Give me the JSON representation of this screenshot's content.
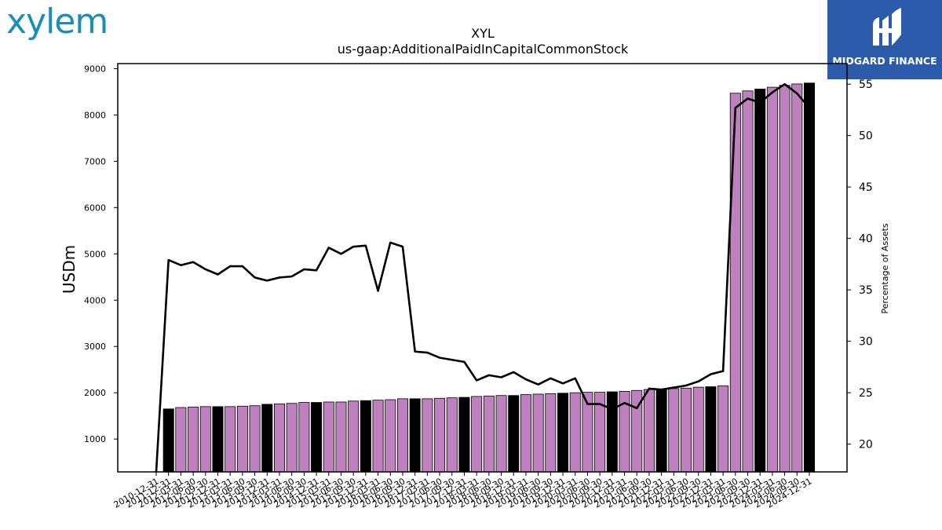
{
  "logos": {
    "left": "xylem",
    "right": "MIDGARD FINANCE"
  },
  "colors": {
    "bar_pink": "#bf80bf",
    "bar_black": "#000000",
    "line": "#000000",
    "logo_left": "#1a8fb5",
    "logo_right_bg": "#2c5ba9"
  },
  "chart_data": {
    "type": "bar",
    "title": "XYL",
    "subtitle": "us-gaap:AdditionalPaidInCapitalCommonStock",
    "ylabel": "USDm",
    "y2label": "Percentage of Assets",
    "ylim": [
      290,
      9110
    ],
    "y2lim": [
      17.3,
      57.0
    ],
    "yticks": [
      1000,
      2000,
      3000,
      4000,
      5000,
      6000,
      7000,
      8000,
      9000
    ],
    "y2ticks": [
      20,
      25,
      30,
      35,
      40,
      45,
      50,
      55
    ],
    "grid": false,
    "legend": "none",
    "categories": [
      "2010-12-31",
      "2011-12-31",
      "2012-03-31",
      "2012-06-30",
      "2012-09-30",
      "2012-12-31",
      "2013-03-31",
      "2013-06-30",
      "2013-09-30",
      "2013-12-31",
      "2014-03-31",
      "2014-06-30",
      "2014-09-30",
      "2014-12-31",
      "2015-03-31",
      "2015-06-30",
      "2015-09-30",
      "2015-12-31",
      "2016-03-31",
      "2016-06-30",
      "2016-09-30",
      "2016-12-31",
      "2017-03-31",
      "2017-06-30",
      "2017-09-30",
      "2017-12-31",
      "2018-03-31",
      "2018-06-30",
      "2018-09-30",
      "2018-12-31",
      "2019-03-31",
      "2019-06-30",
      "2019-09-30",
      "2019-12-31",
      "2020-03-31",
      "2020-06-30",
      "2020-09-30",
      "2020-12-31",
      "2021-03-31",
      "2021-06-30",
      "2021-09-30",
      "2021-12-31",
      "2022-03-31",
      "2022-06-30",
      "2022-09-30",
      "2022-12-31",
      "2023-03-31",
      "2023-06-30",
      "2023-09-30",
      "2023-12-31",
      "2024-03-31",
      "2024-06-30",
      "2024-09-30",
      "2024-12-31"
    ],
    "bar_series": {
      "name": "us-gaap:AdditionalPaidInCapitalCommonStock",
      "values": [
        null,
        1650,
        1680,
        1690,
        1700,
        1700,
        1700,
        1710,
        1720,
        1750,
        1760,
        1770,
        1790,
        1790,
        1800,
        1800,
        1820,
        1830,
        1840,
        1850,
        1870,
        1870,
        1870,
        1880,
        1890,
        1900,
        1920,
        1930,
        1940,
        1940,
        1960,
        1970,
        1980,
        1990,
        2000,
        2010,
        2010,
        2020,
        2030,
        2050,
        2070,
        2070,
        2090,
        2100,
        2120,
        2130,
        2150,
        8470,
        8520,
        8560,
        8600,
        8640,
        8670,
        8690
      ],
      "year_end_black": [
        true,
        true,
        false,
        false,
        false,
        true,
        false,
        false,
        false,
        true,
        false,
        false,
        false,
        true,
        false,
        false,
        false,
        true,
        false,
        false,
        false,
        true,
        false,
        false,
        false,
        true,
        false,
        false,
        false,
        true,
        false,
        false,
        false,
        true,
        false,
        false,
        false,
        true,
        false,
        false,
        false,
        true,
        false,
        false,
        false,
        true,
        false,
        false,
        false,
        true,
        false,
        false,
        false,
        true
      ]
    },
    "line_series": {
      "name": "Percentage of Assets",
      "values": [
        17.3,
        37.9,
        37.4,
        37.7,
        37.0,
        36.5,
        37.3,
        37.3,
        36.2,
        35.9,
        36.2,
        36.3,
        37.0,
        36.9,
        39.1,
        38.5,
        39.2,
        39.3,
        34.9,
        39.6,
        39.2,
        29.0,
        28.9,
        28.4,
        28.2,
        28.0,
        26.2,
        26.7,
        26.5,
        27.0,
        26.3,
        25.8,
        26.4,
        25.9,
        26.4,
        23.9,
        23.9,
        23.4,
        24.0,
        23.5,
        25.4,
        25.3,
        25.5,
        25.7,
        26.1,
        26.8,
        27.1,
        52.7,
        53.6,
        53.2,
        54.2,
        55.0,
        54.1,
        52.7
      ]
    }
  }
}
